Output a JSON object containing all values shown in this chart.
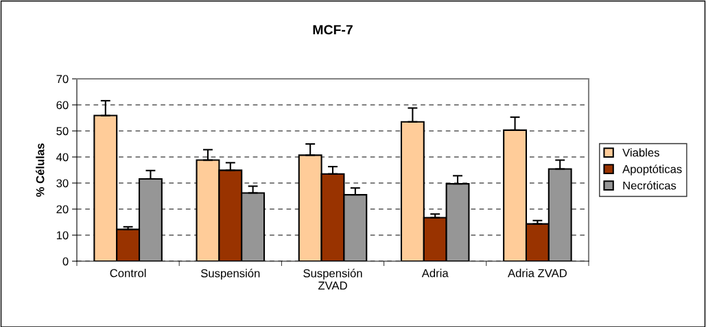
{
  "chart_data": {
    "type": "bar",
    "title": "MCF-7",
    "ylabel": "% Células",
    "categories": [
      "Control",
      "Suspensión",
      "Suspensión\nZVAD",
      "Adria",
      "Adria ZVAD"
    ],
    "series": [
      {
        "name": "Viables",
        "color": "#ffcc99",
        "values": [
          55.9,
          38.8,
          40.7,
          53.5,
          50.3
        ],
        "errors": [
          [
            55.9,
            61.6
          ],
          [
            38.8,
            42.8
          ],
          [
            40.7,
            45.0
          ],
          [
            53.5,
            58.8
          ],
          [
            50.3,
            55.3
          ]
        ]
      },
      {
        "name": "Apoptóticas",
        "color": "#993300",
        "values": [
          12.2,
          34.9,
          33.5,
          16.7,
          14.3
        ],
        "errors": [
          [
            12.2,
            13.2
          ],
          [
            34.9,
            37.8
          ],
          [
            33.5,
            36.3
          ],
          [
            16.7,
            18.1
          ],
          [
            14.3,
            15.6
          ]
        ]
      },
      {
        "name": "Necróticas",
        "color": "#969696",
        "values": [
          31.6,
          26.2,
          25.5,
          29.7,
          35.4
        ],
        "errors": [
          [
            31.6,
            34.8
          ],
          [
            26.2,
            28.8
          ],
          [
            25.5,
            28.1
          ],
          [
            29.7,
            32.8
          ],
          [
            35.4,
            38.8
          ]
        ]
      }
    ],
    "ylim": [
      0,
      70
    ],
    "yticks": [
      0,
      10,
      20,
      30,
      40,
      50,
      60,
      70
    ],
    "grid": "y",
    "legend": "right"
  }
}
